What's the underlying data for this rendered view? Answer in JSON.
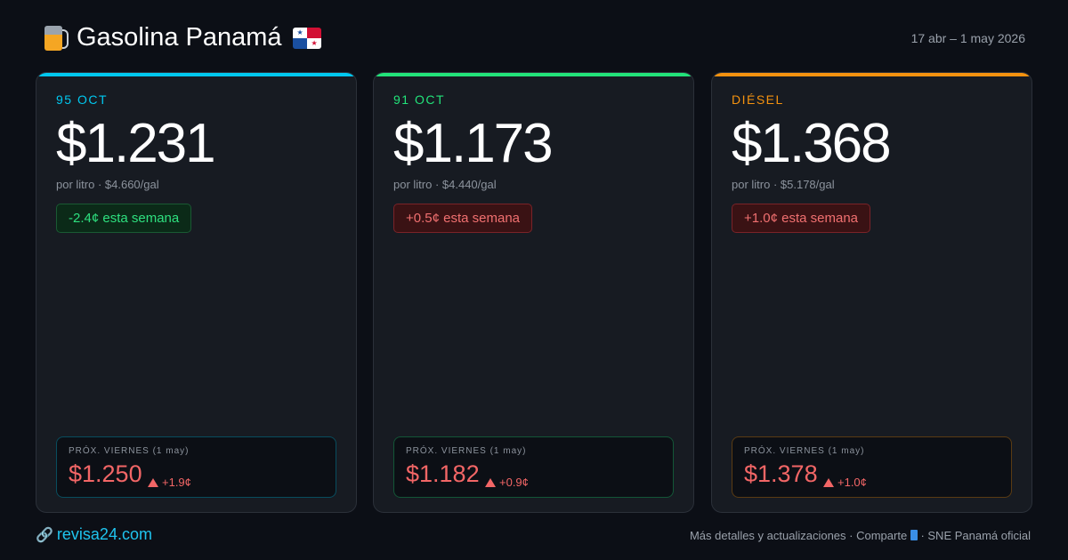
{
  "header": {
    "title": "Gasolina Panamá",
    "icon": "fuel-pump-icon",
    "flag": "panama-flag-icon",
    "date_range": "17 abr – 1 may 2026"
  },
  "cards": [
    {
      "label": "95 OCT",
      "accent": "#00c8f0",
      "price": "$1.231",
      "sub": "por litro · $4.660/gal",
      "change": "-2.4¢ esta semana",
      "change_dir": "down",
      "next_label": "PRÓX. VIERNES (1 may)",
      "next_price": "$1.250",
      "next_change": "+1.9¢"
    },
    {
      "label": "91 OCT",
      "accent": "#22e37a",
      "price": "$1.173",
      "sub": "por litro · $4.440/gal",
      "change": "+0.5¢ esta semana",
      "change_dir": "up",
      "next_label": "PRÓX. VIERNES (1 may)",
      "next_price": "$1.182",
      "next_change": "+0.9¢"
    },
    {
      "label": "DIÉSEL",
      "accent": "#f5920f",
      "price": "$1.368",
      "sub": "por litro · $5.178/gal",
      "change": "+1.0¢ esta semana",
      "change_dir": "up",
      "next_label": "PRÓX. VIERNES (1 may)",
      "next_price": "$1.378",
      "next_change": "+1.0¢"
    }
  ],
  "footer": {
    "site": "revisa24.com",
    "details": "Más detalles y actualizaciones · Comparte",
    "source": "· SNE Panamá oficial"
  }
}
